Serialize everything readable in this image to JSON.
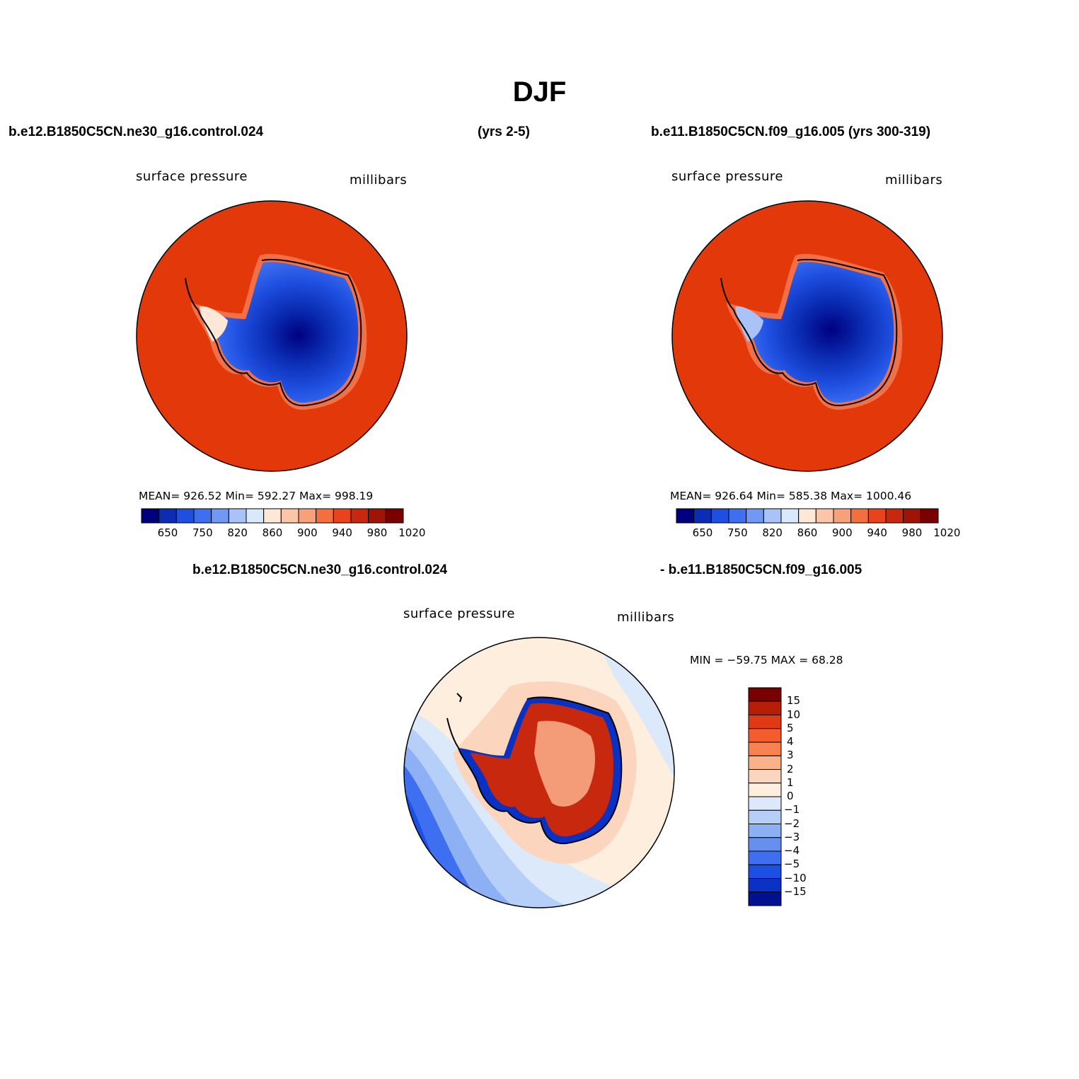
{
  "title": "DJF",
  "top_left": {
    "case": "b.e12.B1850C5CN.ne30_g16.control.024",
    "years": "(yrs 2-5)",
    "variable": "surface pressure",
    "units": "millibars",
    "stats": "MEAN= 926.52   Min= 592.27   Max= 998.19"
  },
  "top_right": {
    "case": "b.e11.B1850C5CN.f09_g16.005 (yrs 300-319)",
    "variable": "surface pressure",
    "units": "millibars",
    "stats": "MEAN= 926.64   Min= 585.38   Max= 1000.46"
  },
  "bottom": {
    "case_a": "b.e12.B1850C5CN.ne30_g16.control.024",
    "case_b": "- b.e11.B1850C5CN.f09_g16.005",
    "variable": "surface pressure",
    "units": "millibars",
    "minmax": "MIN = −59.75 MAX =   68.28"
  },
  "colorbar_abs": {
    "colors": [
      "#00007f",
      "#0a2db4",
      "#1f4fe0",
      "#3d6ff0",
      "#7098f5",
      "#a9c3f8",
      "#d9e8fb",
      "#fde7d6",
      "#fbc6a8",
      "#f7a07a",
      "#f2703f",
      "#e9421c",
      "#c8280d",
      "#a01408",
      "#7a0000"
    ],
    "ticks": [
      "650",
      "750",
      "820",
      "860",
      "900",
      "940",
      "980",
      "1020"
    ],
    "tick_positions": [
      1,
      3,
      5,
      7,
      9,
      11,
      13,
      15
    ]
  },
  "colorbar_diff": {
    "colors": [
      "#7a0000",
      "#b81d07",
      "#e13a12",
      "#f45c2e",
      "#f8814f",
      "#fbb08c",
      "#fcd5bf",
      "#fdeede",
      "#dbe9fa",
      "#b6cff8",
      "#8db0f4",
      "#6690ee",
      "#3d6ff0",
      "#1c4fe3",
      "#0a31c2",
      "#00108f"
    ],
    "ticks": [
      "15",
      "10",
      "5",
      "4",
      "3",
      "2",
      "1",
      "0",
      "−1",
      "−2",
      "−3",
      "−4",
      "−5",
      "−10",
      "−15"
    ]
  },
  "map_colors": {
    "ocean_abs": "#e2380a",
    "ice_dark": "#00007f",
    "ice_mid": "#1f4fe0",
    "ice_light": "#7098f5",
    "coast_pale": "#fde7d6",
    "diff_red": "#c8280d",
    "diff_pale": "#fcd5bf",
    "diff_blue": "#1f4fe0"
  }
}
